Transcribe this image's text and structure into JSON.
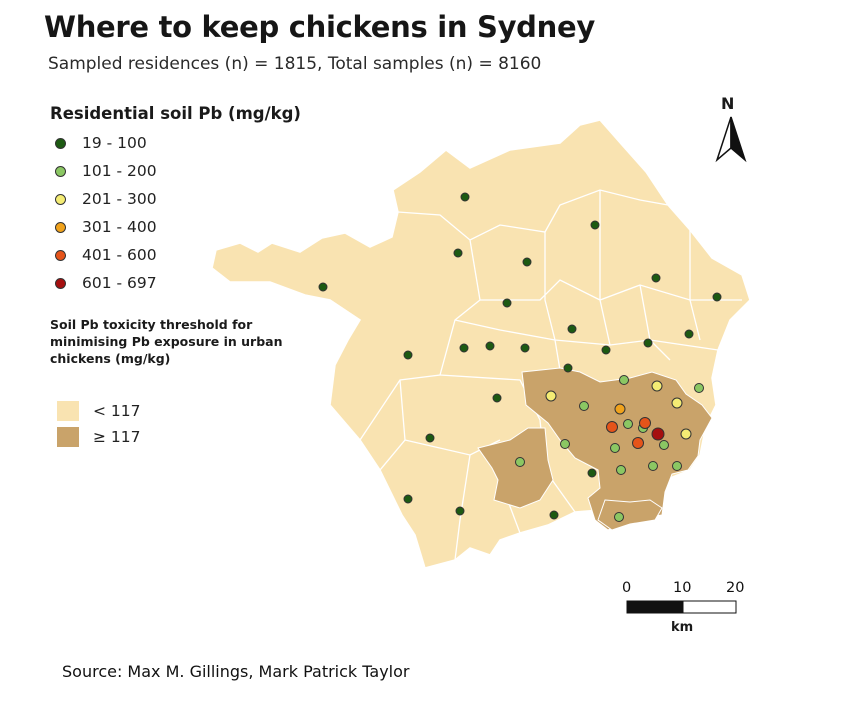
{
  "title": "Where to keep chickens in Sydney",
  "subtitle": "Sampled residences (n) = 1815, Total samples (n) = 8160",
  "legend": {
    "title": "Residential soil Pb (mg/kg)",
    "classes": [
      {
        "label": "19 - 100",
        "color": "#1d5a12"
      },
      {
        "label": "101 - 200",
        "color": "#8bc763"
      },
      {
        "label": "201 - 300",
        "color": "#f4ec74"
      },
      {
        "label": "301 - 400",
        "color": "#f0a21c"
      },
      {
        "label": "401 - 600",
        "color": "#e5541a"
      },
      {
        "label": "601 - 697",
        "color": "#a50f0f"
      }
    ]
  },
  "threshold": {
    "title": "Soil Pb toxicity threshold for minimising Pb exposure in urban chickens (mg/kg)",
    "zones": [
      {
        "label": "< 117",
        "color": "#f9e3b1"
      },
      {
        "label": "≥ 117",
        "color": "#c9a36a"
      }
    ]
  },
  "north_label": "N",
  "scale_bar": {
    "ticks": [
      "0",
      "10",
      "20"
    ],
    "unit": "km"
  },
  "source": "Source: Max M. Gillings, Mark Patrick Taylor",
  "colors": {
    "map_base": "#f9e3b1",
    "map_high": "#c9a36a",
    "boundary": "#ffffff"
  }
}
